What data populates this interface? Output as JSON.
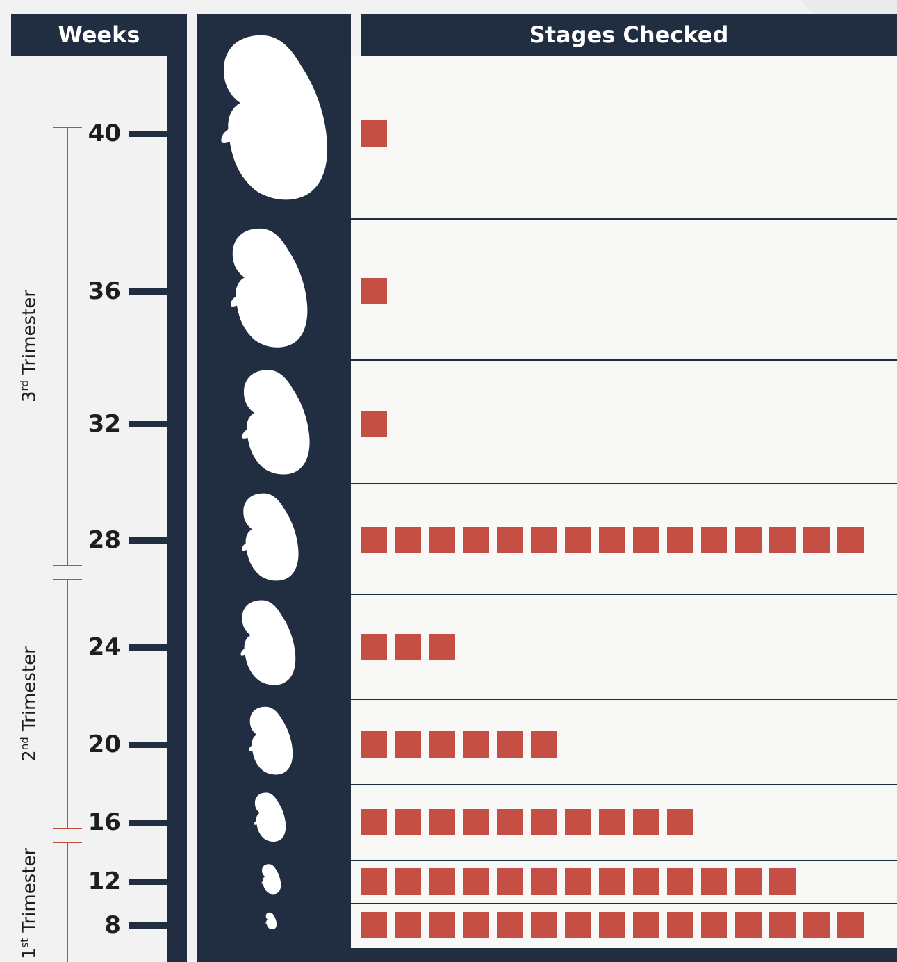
{
  "chart_data": {
    "type": "bar",
    "headers": {
      "left": "Weeks",
      "right": "Stages Checked"
    },
    "categories": [
      "40",
      "36",
      "32",
      "28",
      "24",
      "20",
      "16",
      "12",
      "8"
    ],
    "values": [
      1,
      1,
      1,
      15,
      3,
      6,
      10,
      13,
      15
    ],
    "trimesters": [
      {
        "ordinal": "3",
        "suffix": "rd",
        "word": "Trimester"
      },
      {
        "ordinal": "2",
        "suffix": "nd",
        "word": "Trimester"
      },
      {
        "ordinal": "1",
        "suffix": "st",
        "word": "Trimester"
      }
    ],
    "colors": {
      "square": "#c54f45",
      "dark": "#212d40",
      "bracket": "#c24c40"
    },
    "icons": [
      "fetus-silhouette-icon"
    ]
  }
}
